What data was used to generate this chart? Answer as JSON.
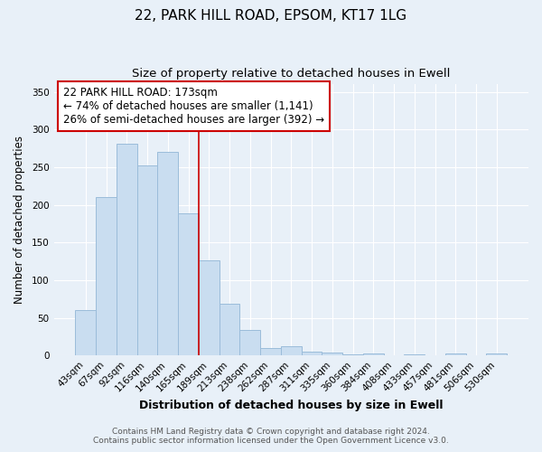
{
  "title1": "22, PARK HILL ROAD, EPSOM, KT17 1LG",
  "title2": "Size of property relative to detached houses in Ewell",
  "xlabel": "Distribution of detached houses by size in Ewell",
  "ylabel": "Number of detached properties",
  "categories": [
    "43sqm",
    "67sqm",
    "92sqm",
    "116sqm",
    "140sqm",
    "165sqm",
    "189sqm",
    "213sqm",
    "238sqm",
    "262sqm",
    "287sqm",
    "311sqm",
    "335sqm",
    "360sqm",
    "384sqm",
    "408sqm",
    "433sqm",
    "457sqm",
    "481sqm",
    "506sqm",
    "530sqm"
  ],
  "values": [
    60,
    210,
    281,
    252,
    271,
    189,
    126,
    69,
    34,
    10,
    13,
    5,
    4,
    2,
    3,
    0,
    2,
    0,
    3,
    1,
    3
  ],
  "bar_color": "#c9ddf0",
  "bar_edge_color": "#9bbcda",
  "background_color": "#e8f0f8",
  "grid_color": "#ffffff",
  "vline_x": 5.5,
  "vline_color": "#cc0000",
  "annotation_title": "22 PARK HILL ROAD: 173sqm",
  "annotation_line1": "← 74% of detached houses are smaller (1,141)",
  "annotation_line2": "26% of semi-detached houses are larger (392) →",
  "annotation_box_color": "#ffffff",
  "annotation_border_color": "#cc0000",
  "ylim": [
    0,
    360
  ],
  "yticks": [
    0,
    50,
    100,
    150,
    200,
    250,
    300,
    350
  ],
  "footer1": "Contains HM Land Registry data © Crown copyright and database right 2024.",
  "footer2": "Contains public sector information licensed under the Open Government Licence v3.0.",
  "title1_fontsize": 11,
  "title2_fontsize": 9.5,
  "xlabel_fontsize": 9,
  "ylabel_fontsize": 8.5,
  "tick_fontsize": 7.5,
  "annotation_fontsize": 8.5,
  "footer_fontsize": 6.5
}
